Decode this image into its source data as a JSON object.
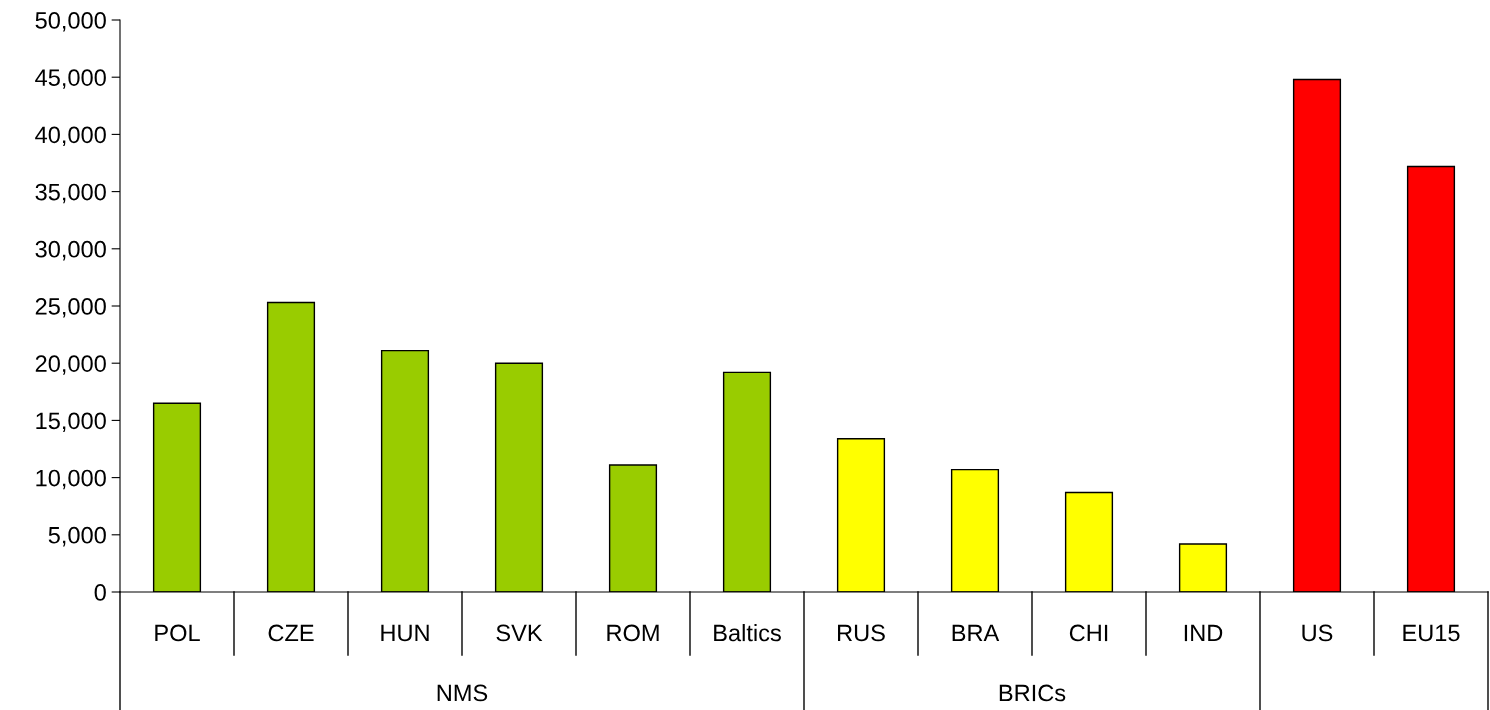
{
  "chart_data": {
    "type": "bar",
    "categories": [
      "POL",
      "CZE",
      "HUN",
      "SVK",
      "ROM",
      "Baltics",
      "RUS",
      "BRA",
      "CHI",
      "IND",
      "US",
      "EU15"
    ],
    "values": [
      16500,
      25300,
      21100,
      20000,
      11100,
      19200,
      13400,
      10700,
      8700,
      4200,
      44800,
      37200
    ],
    "colors": [
      "#99cc00",
      "#99cc00",
      "#99cc00",
      "#99cc00",
      "#99cc00",
      "#99cc00",
      "#ffff00",
      "#ffff00",
      "#ffff00",
      "#ffff00",
      "#ff0000",
      "#ff0000"
    ],
    "annotations": [
      "NMS",
      "BRICs"
    ],
    "ylim": [
      0,
      50000
    ],
    "yticks": [
      {
        "value": 0,
        "label": "0"
      },
      {
        "value": 5000,
        "label": "5,000"
      },
      {
        "value": 10000,
        "label": "10,000"
      },
      {
        "value": 15000,
        "label": "15,000"
      },
      {
        "value": 20000,
        "label": "20,000"
      },
      {
        "value": 25000,
        "label": "25,000"
      },
      {
        "value": 30000,
        "label": "30,000"
      },
      {
        "value": 35000,
        "label": "35,000"
      },
      {
        "value": 40000,
        "label": "40,000"
      },
      {
        "value": 45000,
        "label": "45,000"
      },
      {
        "value": 50000,
        "label": "50,000"
      }
    ],
    "grid": false
  }
}
